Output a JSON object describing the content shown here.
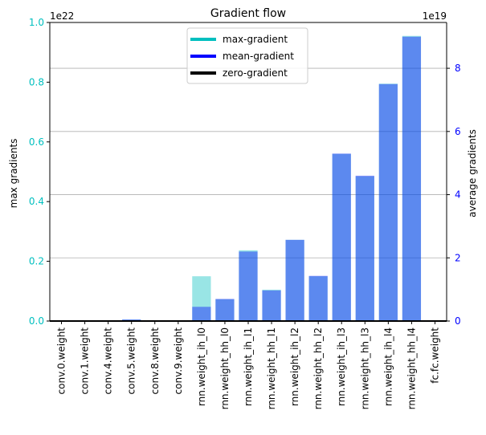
{
  "chart_data": {
    "type": "bar",
    "title": "Gradient flow",
    "categories": [
      "conv.0.weight",
      "conv.1.weight",
      "conv.4.weight",
      "conv.5.weight",
      "conv.8.weight",
      "conv.9.weight",
      "rnn.weight_ih_l0",
      "rnn.weight_hh_l0",
      "rnn.weight_ih_l1",
      "rnn.weight_hh_l1",
      "rnn.weight_ih_l2",
      "rnn.weight_hh_l2",
      "rnn.weight_ih_l3",
      "rnn.weight_hh_l3",
      "rnn.weight_ih_l4",
      "rnn.weight_hh_l4",
      "fc.fc.weight"
    ],
    "left_axis": {
      "label": "max gradients",
      "offset_text": "1e22",
      "ylim": [
        0,
        1.0
      ],
      "ticks": [
        0.0,
        0.2,
        0.4,
        0.6,
        0.8,
        1.0
      ],
      "tick_labels": [
        "0.0",
        "0.2",
        "0.4",
        "0.6",
        "0.8",
        "1.0"
      ],
      "color": "#00bfbf"
    },
    "right_axis": {
      "label": "average gradients",
      "offset_text": "1e19",
      "ylim": [
        0,
        9.45
      ],
      "ticks": [
        0,
        2,
        4,
        6,
        8
      ],
      "tick_labels": [
        "0",
        "2",
        "4",
        "6",
        "8"
      ],
      "color": "#0000ff"
    },
    "grid": "horizontal, right axis ticks",
    "legend_position": "top-center",
    "series": [
      {
        "name": "max-gradient",
        "axis": "left",
        "color": "#00bfbf",
        "values": [
          0,
          0,
          0,
          0.005,
          0,
          0,
          0.15,
          0.073,
          0.237,
          0.105,
          0.272,
          0.15,
          0.56,
          0.485,
          0.795,
          0.955,
          0
        ]
      },
      {
        "name": "mean-gradient",
        "axis": "right",
        "color": "#0000ff",
        "values": [
          0,
          0,
          0,
          0.05,
          0,
          0,
          0.45,
          0.7,
          2.2,
          0.97,
          2.57,
          1.43,
          5.3,
          4.6,
          7.5,
          9.0,
          0
        ]
      },
      {
        "name": "zero-gradient",
        "color": "#000000",
        "values": [
          0,
          0,
          0,
          0,
          0,
          0,
          0,
          0,
          0,
          0,
          0,
          0,
          0,
          0,
          0,
          0,
          0
        ]
      }
    ]
  }
}
